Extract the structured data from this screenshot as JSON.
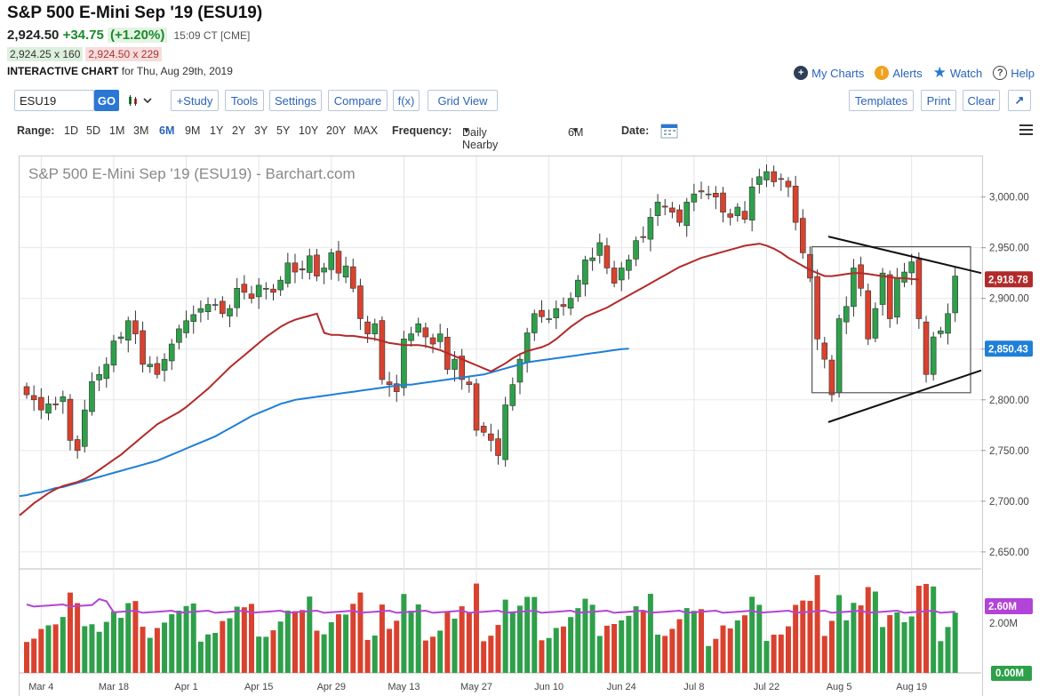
{
  "header": {
    "title": "S&P 500 E-Mini Sep '19 (ESU19)",
    "last": "2,924.50",
    "change": "+34.75",
    "change_pct": "(+1.20%)",
    "time": "15:09 CT [CME]",
    "bid": "2,924.25 x 160",
    "ask": "2,924.50 x 229",
    "interactive_label": "INTERACTIVE CHART",
    "interactive_date": "for Thu, Aug 29th, 2019"
  },
  "links": {
    "my_charts": "My Charts",
    "alerts": "Alerts",
    "watch": "Watch",
    "help": "Help"
  },
  "toolbar": {
    "symbol": "ESU19",
    "go": "GO",
    "study": "+Study",
    "tools": "Tools",
    "settings": "Settings",
    "compare": "Compare",
    "fx": "f(x)",
    "grid_view": "Grid View",
    "templates": "Templates",
    "print": "Print",
    "clear": "Clear",
    "expand_glyph": "↗"
  },
  "range": {
    "label": "Range:",
    "options": [
      "1D",
      "5D",
      "1M",
      "3M",
      "6M",
      "9M",
      "1Y",
      "2Y",
      "3Y",
      "5Y",
      "10Y",
      "20Y",
      "MAX"
    ],
    "selected": "6M",
    "frequency_label": "Frequency:",
    "frequency_value": "Daily Nearby",
    "period_value": "6M",
    "date_label": "Date:"
  },
  "chart_data": {
    "type": "candlestick",
    "title": "S&P 500 E-Mini Sep '19 (ESU19) - Barchart.com",
    "x_labels": [
      "Mar 4",
      "Mar 18",
      "Apr 1",
      "Apr 15",
      "Apr 29",
      "May 13",
      "May 27",
      "Jun 10",
      "Jun 24",
      "Jul 8",
      "Jul 22",
      "Aug 5",
      "Aug 19"
    ],
    "x_label_index": [
      2,
      12,
      22,
      32,
      42,
      52,
      62,
      72,
      82,
      92,
      102,
      112,
      122
    ],
    "y_ticks": [
      "3,000.00",
      "2,950.00",
      "2,900.00",
      "2,850.00",
      "2,800.00",
      "2,750.00",
      "2,700.00",
      "2,650.00"
    ],
    "y_tick_values": [
      3000,
      2950,
      2900,
      2850,
      2800,
      2750,
      2700,
      2650
    ],
    "ylim": [
      2635,
      3040
    ],
    "close": [
      2805,
      2800,
      2790,
      2796,
      2795,
      2803,
      2760,
      2750,
      2790,
      2818,
      2825,
      2835,
      2858,
      2862,
      2878,
      2865,
      2835,
      2835,
      2825,
      2840,
      2855,
      2870,
      2878,
      2884,
      2890,
      2894,
      2894,
      2885,
      2890,
      2910,
      2906,
      2900,
      2913,
      2910,
      2906,
      2918,
      2935,
      2926,
      2928,
      2942,
      2922,
      2930,
      2945,
      2925,
      2932,
      2910,
      2880,
      2865,
      2875,
      2820,
      2815,
      2808,
      2860,
      2865,
      2875,
      2862,
      2855,
      2865,
      2830,
      2840,
      2820,
      2815,
      2770,
      2768,
      2760,
      2745,
      2795,
      2815,
      2840,
      2866,
      2885,
      2882,
      2880,
      2890,
      2892,
      2900,
      2918,
      2938,
      2940,
      2955,
      2930,
      2915,
      2930,
      2938,
      2957,
      2960,
      2980,
      2995,
      2990,
      2985,
      2975,
      2995,
      3003,
      3005,
      3003,
      3000,
      2985,
      2980,
      2990,
      2978,
      3010,
      3020,
      3025,
      3015,
      3018,
      3010,
      2975,
      2945,
      2920,
      2860,
      2840,
      2805,
      2880,
      2892,
      2930,
      2910,
      2860,
      2890,
      2925,
      2880,
      2920,
      2926,
      2936,
      2880,
      2825,
      2862,
      2868,
      2885,
      2922
    ],
    "volume_ma_label": "2.60M",
    "volume_axis_label": "2.00M",
    "volume_zero_label": "0.00M",
    "last_price_label": "2,918.78",
    "ma_50_label": "2,918.78",
    "ma_200_label": "2,850.43",
    "ma_50": [
      2686,
      2692,
      2698,
      2703,
      2708,
      2712,
      2715,
      2717,
      2719,
      2722,
      2726,
      2731,
      2736,
      2741,
      2746,
      2752,
      2758,
      2764,
      2770,
      2776,
      2780,
      2784,
      2788,
      2793,
      2799,
      2805,
      2811,
      2818,
      2825,
      2832,
      2838,
      2844,
      2850,
      2856,
      2862,
      2867,
      2872,
      2876,
      2879,
      2881,
      2883,
      2885,
      2866,
      2864,
      2864,
      2863,
      2863,
      2862,
      2861,
      2860,
      2858,
      2856,
      2855,
      2854,
      2854,
      2854,
      2853,
      2851,
      2849,
      2846,
      2843,
      2840,
      2837,
      2834,
      2831,
      2828,
      2832,
      2836,
      2841,
      2845,
      2848,
      2850,
      2852,
      2855,
      2860,
      2866,
      2872,
      2877,
      2882,
      2885,
      2888,
      2891,
      2895,
      2899,
      2903,
      2907,
      2911,
      2915,
      2919,
      2923,
      2927,
      2931,
      2934,
      2937,
      2940,
      2942,
      2944,
      2946,
      2948,
      2950,
      2952,
      2953,
      2954,
      2952,
      2949,
      2945,
      2940,
      2936,
      2932,
      2928,
      2925,
      2922,
      2922,
      2923,
      2924,
      2925,
      2925,
      2924,
      2923,
      2922,
      2921,
      2920,
      2920,
      2919,
      2918.78
    ],
    "ma_200": [
      2705,
      2706,
      2708,
      2709,
      2711,
      2713,
      2714,
      2716,
      2718,
      2720,
      2722,
      2724,
      2726,
      2728,
      2730,
      2732,
      2734,
      2736,
      2738,
      2740,
      2743,
      2746,
      2749,
      2752,
      2755,
      2758,
      2761,
      2764,
      2768,
      2772,
      2776,
      2780,
      2784,
      2787,
      2790,
      2793,
      2796,
      2798,
      2800,
      2801,
      2802,
      2803,
      2804,
      2805,
      2806,
      2807,
      2808,
      2809,
      2810,
      2811,
      2812,
      2813,
      2814,
      2815,
      2815,
      2816,
      2817,
      2818,
      2819,
      2820,
      2821,
      2822,
      2823,
      2824,
      2825,
      2827,
      2829,
      2831,
      2833,
      2835,
      2837,
      2838,
      2839,
      2840,
      2841,
      2842,
      2843,
      2844,
      2845,
      2846,
      2847,
      2848,
      2849,
      2850,
      2850.43
    ]
  }
}
